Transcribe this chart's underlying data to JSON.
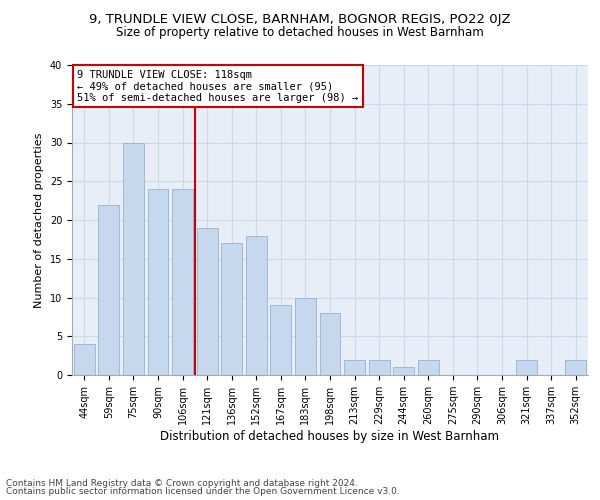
{
  "title1": "9, TRUNDLE VIEW CLOSE, BARNHAM, BOGNOR REGIS, PO22 0JZ",
  "title2": "Size of property relative to detached houses in West Barnham",
  "xlabel": "Distribution of detached houses by size in West Barnham",
  "ylabel": "Number of detached properties",
  "categories": [
    "44sqm",
    "59sqm",
    "75sqm",
    "90sqm",
    "106sqm",
    "121sqm",
    "136sqm",
    "152sqm",
    "167sqm",
    "183sqm",
    "198sqm",
    "213sqm",
    "229sqm",
    "244sqm",
    "260sqm",
    "275sqm",
    "290sqm",
    "306sqm",
    "321sqm",
    "337sqm",
    "352sqm"
  ],
  "values": [
    4,
    22,
    30,
    24,
    24,
    19,
    17,
    18,
    9,
    10,
    8,
    2,
    2,
    1,
    2,
    0,
    0,
    0,
    2,
    0,
    2
  ],
  "bar_color": "#c5d8ed",
  "bar_edge_color": "#a0b8d0",
  "vline_x": 4.5,
  "annotation_line1": "9 TRUNDLE VIEW CLOSE: 118sqm",
  "annotation_line2": "← 49% of detached houses are smaller (95)",
  "annotation_line3": "51% of semi-detached houses are larger (98) →",
  "annotation_box_color": "#ffffff",
  "annotation_box_edge": "#cc0000",
  "vline_color": "#cc0000",
  "ylim": [
    0,
    40
  ],
  "yticks": [
    0,
    5,
    10,
    15,
    20,
    25,
    30,
    35,
    40
  ],
  "grid_color": "#d0d8e8",
  "bg_color": "#e8eef8",
  "footer1": "Contains HM Land Registry data © Crown copyright and database right 2024.",
  "footer2": "Contains public sector information licensed under the Open Government Licence v3.0.",
  "title1_fontsize": 9.5,
  "title2_fontsize": 8.5,
  "xlabel_fontsize": 8.5,
  "ylabel_fontsize": 8,
  "tick_fontsize": 7,
  "annotation_fontsize": 7.5,
  "footer_fontsize": 6.5
}
